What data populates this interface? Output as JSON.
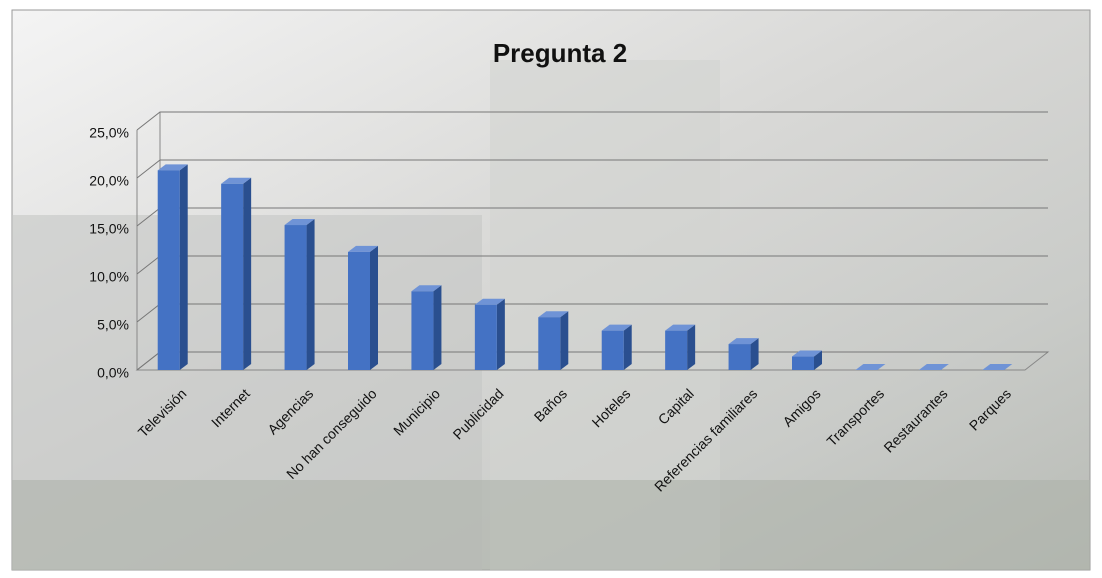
{
  "chart_data": {
    "type": "bar3d",
    "title": "Pregunta 2",
    "categories": [
      "Televisión",
      "Internet",
      "Agencias",
      "No han conseguido",
      "Municipio",
      "Publicidad",
      "Baños",
      "Hoteles",
      "Capital",
      "Referencias familiares",
      "Amigos",
      "Transportes",
      "Restaurantes",
      "Parques"
    ],
    "values": [
      20.8,
      19.4,
      15.1,
      12.3,
      8.2,
      6.8,
      5.5,
      4.1,
      4.1,
      2.7,
      1.4,
      0,
      0,
      0
    ],
    "color": "#4472c4",
    "ylim": [
      0,
      25
    ],
    "yticks": [
      {
        "value": 0,
        "label": "0,0%"
      },
      {
        "value": 5,
        "label": "5,0%"
      },
      {
        "value": 10,
        "label": "10,0%"
      },
      {
        "value": 15,
        "label": "15,0%"
      },
      {
        "value": 20,
        "label": "20,0%"
      },
      {
        "value": 25,
        "label": "25,0%"
      }
    ],
    "grid": true
  }
}
